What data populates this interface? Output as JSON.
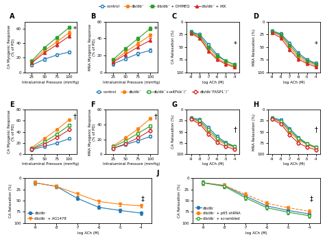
{
  "chart_data": [
    {
      "type": "line",
      "title": "A",
      "annotations": [
        "*"
      ],
      "x_label": "Intraluminal Pressure (mmHg)",
      "y_label": "CA Myogenic Response\n(% of PD)",
      "x": [
        25,
        50,
        75,
        100
      ],
      "xlim": [
        10,
        115
      ],
      "xticks": [
        25,
        50,
        75,
        100
      ],
      "ylim": [
        0,
        70
      ],
      "yticks": [
        0,
        20,
        40,
        60
      ],
      "legend": "upper center",
      "series": [
        {
          "name": "control",
          "marker": "circle_open",
          "line_style": "solid",
          "values": [
            10,
            18,
            24,
            28
          ],
          "errors": [
            2,
            2,
            2,
            2
          ]
        },
        {
          "name": "db/db⁻",
          "marker": "circle_filled",
          "line_style": "solid",
          "values": [
            14,
            30,
            42,
            55
          ],
          "errors": [
            2,
            2,
            2,
            2
          ]
        },
        {
          "name": "db/db⁻ + DHMEQ",
          "marker": "square_filled",
          "line_style": "solid",
          "values": [
            16,
            34,
            48,
            62
          ],
          "errors": [
            2,
            2,
            2,
            2
          ]
        },
        {
          "name": "db/db⁻ + IKK",
          "marker": "triangle_up_filled",
          "line_style": "solid",
          "values": [
            13,
            27,
            38,
            50
          ],
          "errors": [
            2,
            2,
            2,
            2
          ]
        }
      ]
    },
    {
      "type": "line",
      "title": "B",
      "annotations": [
        "*"
      ],
      "x_label": "Intraluminal Pressure (mmHg)",
      "y_label": "MRA Myogenic Response\n(% of PD)",
      "x": [
        25,
        50,
        75,
        100
      ],
      "xlim": [
        10,
        115
      ],
      "xticks": [
        25,
        50,
        75,
        100
      ],
      "ylim": [
        0,
        60
      ],
      "yticks": [
        0,
        20,
        40,
        60
      ],
      "series": [
        {
          "name": "control",
          "marker": "circle_open",
          "line_style": "solid",
          "values": [
            10,
            16,
            22,
            26
          ],
          "errors": [
            2,
            2,
            2,
            2
          ]
        },
        {
          "name": "db/db⁻",
          "marker": "circle_filled",
          "line_style": "solid",
          "values": [
            13,
            24,
            34,
            44
          ],
          "errors": [
            2,
            2,
            2,
            2
          ]
        },
        {
          "name": "db/db⁻ + DHMEQ",
          "marker": "square_filled",
          "line_style": "solid",
          "values": [
            15,
            28,
            40,
            52
          ],
          "errors": [
            2,
            2,
            2,
            2
          ]
        },
        {
          "name": "db/db⁻ + IKK",
          "marker": "triangle_up_filled",
          "line_style": "solid",
          "values": [
            12,
            21,
            30,
            38
          ],
          "errors": [
            2,
            2,
            2,
            2
          ]
        }
      ]
    },
    {
      "type": "line",
      "title": "C",
      "annotations": [
        "*"
      ],
      "x_label": "log ACh (M)",
      "y_label": "CA Relaxation (%)",
      "x": [
        -9,
        -8,
        -7,
        -6,
        -5,
        -4
      ],
      "xlim": [
        -9.5,
        -3.5
      ],
      "xticks": [
        -9,
        -8,
        -7,
        -6,
        -5,
        -4
      ],
      "ylim": [
        100,
        0
      ],
      "yticks": [
        0,
        25,
        50,
        75,
        100
      ],
      "series": [
        {
          "name": "control",
          "marker": "circle_open",
          "line_style": "solid",
          "values": [
            20,
            25,
            45,
            65,
            78,
            85
          ],
          "errors": [
            3,
            3,
            3,
            3,
            3,
            3
          ]
        },
        {
          "name": "db/db⁻",
          "marker": "circle_filled",
          "line_style": "solid",
          "values": [
            22,
            30,
            55,
            72,
            82,
            88
          ],
          "errors": [
            3,
            3,
            3,
            3,
            3,
            3
          ]
        },
        {
          "name": "db/db⁻ + DHMEQ",
          "marker": "square_filled",
          "line_style": "solid",
          "values": [
            21,
            28,
            50,
            68,
            78,
            85
          ],
          "errors": [
            3,
            3,
            3,
            3,
            3,
            3
          ]
        },
        {
          "name": "db/db⁻ + IKK",
          "marker": "triangle_up_filled",
          "line_style": "solid",
          "values": [
            23,
            33,
            58,
            75,
            84,
            90
          ],
          "errors": [
            3,
            3,
            3,
            3,
            3,
            3
          ]
        }
      ]
    },
    {
      "type": "line",
      "title": "D",
      "annotations": [
        "*"
      ],
      "x_label": "log ACh (M)",
      "y_label": "MRA Relaxation (%)",
      "x": [
        -9,
        -8,
        -7,
        -6,
        -5,
        -4
      ],
      "xlim": [
        -9.5,
        -3.5
      ],
      "xticks": [
        -9,
        -8,
        -7,
        -6,
        -5,
        -4
      ],
      "ylim": [
        100,
        0
      ],
      "yticks": [
        0,
        25,
        50,
        75,
        100
      ],
      "series": [
        {
          "name": "control",
          "marker": "circle_open",
          "line_style": "solid",
          "values": [
            18,
            24,
            42,
            62,
            75,
            82
          ],
          "errors": [
            3,
            3,
            3,
            3,
            3,
            3
          ]
        },
        {
          "name": "db/db⁻",
          "marker": "circle_filled",
          "line_style": "solid",
          "values": [
            20,
            28,
            50,
            70,
            80,
            86
          ],
          "errors": [
            3,
            3,
            3,
            3,
            3,
            3
          ]
        },
        {
          "name": "db/db⁻ + DHMEQ",
          "marker": "square_filled",
          "line_style": "solid",
          "values": [
            19,
            26,
            46,
            66,
            77,
            84
          ],
          "errors": [
            3,
            3,
            3,
            3,
            3,
            3
          ]
        },
        {
          "name": "db/db⁻ + IKK",
          "marker": "triangle_up_filled",
          "line_style": "solid",
          "values": [
            22,
            32,
            55,
            74,
            83,
            89
          ],
          "errors": [
            3,
            3,
            3,
            3,
            3,
            3
          ]
        }
      ]
    },
    {
      "type": "line",
      "title": "E",
      "annotations": [
        "†"
      ],
      "x_label": "Intraluminal Pressure (mmHg)",
      "y_label": "CA Myogenic Response\n(% of PD)",
      "x": [
        25,
        50,
        75,
        100
      ],
      "xlim": [
        10,
        115
      ],
      "xticks": [
        25,
        50,
        75,
        100
      ],
      "ylim": [
        0,
        80
      ],
      "yticks": [
        0,
        20,
        40,
        60,
        80
      ],
      "legend": "upper center",
      "series": [
        {
          "name": "control",
          "marker": "circle_open",
          "line_style": "solid",
          "values": [
            8,
            14,
            20,
            28
          ],
          "errors": [
            2,
            2,
            2,
            2
          ]
        },
        {
          "name": "db/db⁻",
          "marker": "circle_filled",
          "line_style": "solid",
          "values": [
            12,
            28,
            44,
            62
          ],
          "errors": [
            2,
            2,
            2,
            2
          ]
        },
        {
          "name": "db/db⁻+ικKFkb⁻/⁻",
          "marker": "square_open",
          "line_style": "solid",
          "values": [
            10,
            22,
            36,
            52
          ],
          "errors": [
            2,
            2,
            2,
            2
          ]
        },
        {
          "name": "db/db⁻FASP1⁻/⁻",
          "marker": "diamond_open",
          "line_style": "solid",
          "values": [
            9,
            18,
            30,
            44
          ],
          "errors": [
            2,
            2,
            2,
            2
          ]
        }
      ]
    },
    {
      "type": "line",
      "title": "F",
      "annotations": [
        "†"
      ],
      "x_label": "Intraluminal Pressure (mmHg)",
      "y_label": "MRA Myogenic Response\n(% of PD)",
      "x": [
        25,
        50,
        75,
        100
      ],
      "xlim": [
        10,
        115
      ],
      "xticks": [
        25,
        50,
        75,
        100
      ],
      "ylim": [
        0,
        60
      ],
      "yticks": [
        0,
        20,
        40,
        60
      ],
      "series": [
        {
          "name": "control",
          "marker": "circle_open",
          "line_style": "solid",
          "values": [
            8,
            13,
            18,
            24
          ],
          "errors": [
            2,
            2,
            2,
            2
          ]
        },
        {
          "name": "db/db⁻",
          "marker": "circle_filled",
          "line_style": "solid",
          "values": [
            11,
            22,
            34,
            48
          ],
          "errors": [
            2,
            2,
            2,
            2
          ]
        },
        {
          "name": "db/db⁻+ικKFkb⁻/⁻",
          "marker": "square_open",
          "line_style": "solid",
          "values": [
            10,
            18,
            28,
            38
          ],
          "errors": [
            2,
            2,
            2,
            2
          ]
        },
        {
          "name": "db/db⁻FASP1⁻/⁻",
          "marker": "diamond_open",
          "line_style": "solid",
          "values": [
            8,
            14,
            22,
            32
          ],
          "errors": [
            2,
            2,
            2,
            2
          ]
        }
      ]
    },
    {
      "type": "line",
      "title": "G",
      "annotations": [
        "†"
      ],
      "x_label": "log ACh (M)",
      "y_label": "CA Relaxation (%)",
      "x": [
        -9,
        -8,
        -7,
        -6,
        -5,
        -4
      ],
      "xlim": [
        -9.5,
        -3.5
      ],
      "xticks": [
        -9,
        -8,
        -7,
        -6,
        -5,
        -4
      ],
      "ylim": [
        100,
        0
      ],
      "yticks": [
        0,
        25,
        50,
        75,
        100
      ],
      "series": [
        {
          "name": "control",
          "marker": "circle_open",
          "line_style": "solid",
          "values": [
            18,
            22,
            40,
            60,
            74,
            82
          ],
          "errors": [
            3,
            3,
            3,
            3,
            3,
            3
          ]
        },
        {
          "name": "db/db⁻",
          "marker": "circle_filled",
          "line_style": "solid",
          "values": [
            20,
            28,
            50,
            68,
            78,
            85
          ],
          "errors": [
            3,
            3,
            3,
            3,
            3,
            3
          ]
        },
        {
          "name": "db/db⁻+ικKFkb⁻/⁻",
          "marker": "square_open",
          "line_style": "solid",
          "values": [
            19,
            25,
            45,
            64,
            76,
            83
          ],
          "errors": [
            3,
            3,
            3,
            3,
            3,
            3
          ]
        },
        {
          "name": "db/db⁻FASP1⁻/⁻",
          "marker": "diamond_open",
          "line_style": "solid",
          "values": [
            22,
            32,
            55,
            74,
            83,
            89
          ],
          "errors": [
            3,
            3,
            3,
            3,
            3,
            3
          ]
        }
      ]
    },
    {
      "type": "line",
      "title": "H",
      "annotations": [
        "†"
      ],
      "x_label": "log ACh (M)",
      "y_label": "MRA Relaxation (%)",
      "x": [
        -9,
        -8,
        -7,
        -6,
        -5,
        -4
      ],
      "xlim": [
        -9.5,
        -3.5
      ],
      "xticks": [
        -9,
        -8,
        -7,
        -6,
        -5,
        -4
      ],
      "ylim": [
        100,
        0
      ],
      "yticks": [
        0,
        25,
        50,
        75,
        100
      ],
      "series": [
        {
          "name": "control",
          "marker": "circle_open",
          "line_style": "solid",
          "values": [
            18,
            23,
            42,
            62,
            76,
            84
          ],
          "errors": [
            3,
            3,
            3,
            3,
            3,
            3
          ]
        },
        {
          "name": "db/db⁻",
          "marker": "circle_filled",
          "line_style": "solid",
          "values": [
            20,
            28,
            50,
            68,
            78,
            86
          ],
          "errors": [
            3,
            3,
            3,
            3,
            3,
            3
          ]
        },
        {
          "name": "db/db⁻+ικKFkb⁻/⁻",
          "marker": "square_open",
          "line_style": "solid",
          "values": [
            19,
            26,
            46,
            65,
            77,
            84
          ],
          "errors": [
            3,
            3,
            3,
            3,
            3,
            3
          ]
        },
        {
          "name": "db/db⁻FASP1⁻/⁻",
          "marker": "diamond_open",
          "line_style": "solid",
          "values": [
            22,
            32,
            56,
            75,
            84,
            90
          ],
          "errors": [
            3,
            3,
            3,
            3,
            3,
            3
          ]
        }
      ]
    },
    {
      "type": "line",
      "title": "I",
      "annotations": [
        "‡"
      ],
      "x_label": "log ACh (M)",
      "y_label": "CA Relaxation (%)",
      "x": [
        -9,
        -8,
        -7,
        -6,
        -5,
        -4
      ],
      "xlim": [
        -9.5,
        -3.5
      ],
      "xticks": [
        -9,
        -8,
        -7,
        -6,
        -5,
        -4
      ],
      "ylim": [
        100,
        0
      ],
      "yticks": [
        0,
        25,
        50,
        75,
        100
      ],
      "legend": "lower left",
      "series": [
        {
          "name": "db/db⁻",
          "marker": "circle_filled",
          "line_style": "solid",
          "values": [
            10,
            18,
            45,
            65,
            72,
            78
          ],
          "errors": [
            4,
            4,
            4,
            4,
            4,
            4
          ]
        },
        {
          "name": "db/db⁻ + AG1478",
          "marker": "triangle_down_filled",
          "line_style": "solid",
          "values": [
            10,
            18,
            35,
            52,
            58,
            62
          ],
          "errors": [
            4,
            4,
            4,
            4,
            4,
            4
          ]
        }
      ]
    },
    {
      "type": "line",
      "title": "J",
      "annotations": [
        "‡"
      ],
      "x_label": "log ACh (M)",
      "y_label": "CA Relaxation (%)",
      "x": [
        -9,
        -8,
        -7,
        -6,
        -5,
        -4
      ],
      "xlim": [
        -9.5,
        -3.5
      ],
      "xticks": [
        -9,
        -8,
        -7,
        -6,
        -5,
        -4
      ],
      "ylim": [
        100,
        0
      ],
      "yticks": [
        0,
        25,
        50,
        75,
        100
      ],
      "legend": "lower left",
      "series": [
        {
          "name": "db/db⁻",
          "marker": "circle_filled",
          "line_style": "solid",
          "values": [
            10,
            16,
            40,
            62,
            72,
            80
          ],
          "errors": [
            4,
            4,
            4,
            4,
            4,
            4
          ]
        },
        {
          "name": "db/db⁻ + p65 shRNA",
          "marker": "circle_filled",
          "line_style": "dashed",
          "values": [
            10,
            16,
            36,
            56,
            66,
            74
          ],
          "errors": [
            4,
            4,
            4,
            4,
            4,
            4
          ]
        },
        {
          "name": "db/db⁻ + scrambled",
          "marker": "circle_open",
          "line_style": "solid",
          "values": [
            10,
            18,
            44,
            66,
            76,
            84
          ],
          "errors": [
            4,
            4,
            4,
            4,
            4,
            4
          ]
        }
      ]
    }
  ]
}
